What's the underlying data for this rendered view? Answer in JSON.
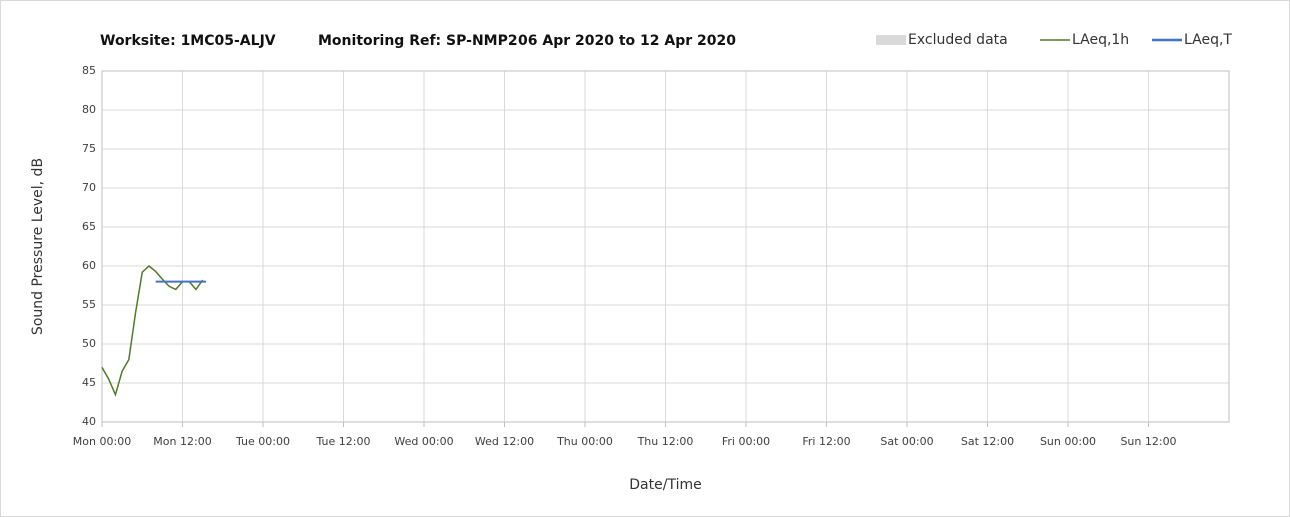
{
  "chart_data": {
    "type": "line",
    "title": [
      "Worksite: 1MC05-ALJV",
      "Monitoring Ref: SP-NMP2",
      "06 Apr 2020 to 12 Apr 2020"
    ],
    "x_label": "Date/Time",
    "y_label": "Sound Pressure Level, dB",
    "xlim": [
      0,
      168
    ],
    "xticks": [
      {
        "value": 0,
        "label": "Mon 00:00"
      },
      {
        "value": 12,
        "label": "Mon 12:00"
      },
      {
        "value": 24,
        "label": "Tue 00:00"
      },
      {
        "value": 36,
        "label": "Tue 12:00"
      },
      {
        "value": 48,
        "label": "Wed 00:00"
      },
      {
        "value": 60,
        "label": "Wed 12:00"
      },
      {
        "value": 72,
        "label": "Thu 00:00"
      },
      {
        "value": 84,
        "label": "Thu 12:00"
      },
      {
        "value": 96,
        "label": "Fri 00:00"
      },
      {
        "value": 108,
        "label": "Fri 12:00"
      },
      {
        "value": 120,
        "label": "Sat 00:00"
      },
      {
        "value": 132,
        "label": "Sat 12:00"
      },
      {
        "value": 144,
        "label": "Sun 00:00"
      },
      {
        "value": 156,
        "label": "Sun 12:00"
      }
    ],
    "ylim": [
      40,
      85
    ],
    "yticks": [
      40,
      45,
      50,
      55,
      60,
      65,
      70,
      75,
      80,
      85
    ],
    "grid": true,
    "legend": "top-right",
    "series": [
      {
        "name": "Excluded data",
        "color": "#d9d9d9",
        "x": [],
        "values": []
      },
      {
        "name": "LAeq,1h",
        "color": "#4f7a28",
        "x": [
          0,
          1,
          2,
          3,
          4,
          5,
          6,
          7,
          8,
          9,
          10,
          11,
          12,
          13,
          14,
          15
        ],
        "values": [
          47,
          45.5,
          43.5,
          46.5,
          48,
          54,
          59.2,
          60,
          59.3,
          58.3,
          57.4,
          57,
          58,
          58,
          57,
          58.2
        ]
      },
      {
        "name": "LAeq,T",
        "color": "#4472c4",
        "x": [
          8,
          15.5
        ],
        "values": [
          58,
          58
        ]
      }
    ]
  }
}
